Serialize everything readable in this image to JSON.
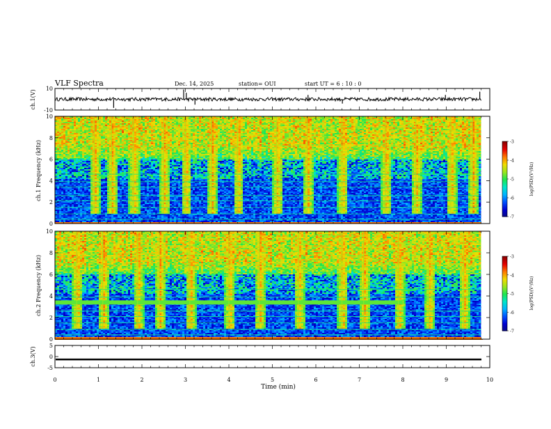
{
  "header": {
    "title": "VLF Spectra",
    "date": "Dec. 14, 2025",
    "station": "station= OUI",
    "start": "start  UT  =   6  : 10 : 0"
  },
  "colors": {
    "spec_scale": [
      "#0a0a82",
      "#0000d2",
      "#0050ff",
      "#00b4ff",
      "#00e6c8",
      "#1ee650",
      "#9be61e",
      "#f0dc00",
      "#ff7800",
      "#e60000",
      "#8c0000"
    ],
    "trace": "#000000"
  },
  "colorbars": [
    {
      "label": "log(PSD)(V²/Hz)",
      "ticks": [
        "-3",
        "-4",
        "-5",
        "-6",
        "-7"
      ]
    },
    {
      "label": "log(PSD)(V²/Hz)",
      "ticks": [
        "-3",
        "-4",
        "-5",
        "-6",
        "-7"
      ]
    }
  ],
  "chart_data": [
    {
      "type": "line",
      "name": "ch1-waveform",
      "ylabel": "ch.1(V)",
      "ylim": [
        -10,
        10
      ],
      "ytick_labels": [
        "10",
        "-10"
      ],
      "xlim": [
        0,
        10
      ],
      "baseline": 0,
      "spikes": [
        {
          "t": 1.35,
          "v": -8
        },
        {
          "t": 2.96,
          "v": 9
        },
        {
          "t": 3.02,
          "v": 6
        },
        {
          "t": 3.22,
          "v": -5
        },
        {
          "t": 5.82,
          "v": 4
        },
        {
          "t": 6.61,
          "v": -4
        },
        {
          "t": 8.98,
          "v": 4
        },
        {
          "t": 9.77,
          "v": 7
        }
      ]
    },
    {
      "type": "heatmap",
      "name": "ch1-spectrogram",
      "ylabel": "ch.1  Frequency  (kHz)",
      "ylim": [
        0,
        10
      ],
      "ytick_labels": [
        "0",
        "2",
        "4",
        "6",
        "8",
        "10"
      ],
      "xlim": [
        0,
        10
      ],
      "data_end_min": 9.8,
      "z_range": [
        -7,
        -3
      ],
      "background_logpsd": -6.7,
      "hiss_kHz": [
        6.0,
        10.0
      ],
      "hiss_logpsd": -4.3,
      "band_lines_kHz": [
        0.4,
        0.9,
        1.5,
        2.1,
        2.6,
        3.4,
        3.9,
        4.6
      ],
      "band_logpsd": -5.2,
      "burst_times_min": [
        0.9,
        1.3,
        1.8,
        2.5,
        3.0,
        3.6,
        4.2,
        5.1,
        5.8,
        6.6,
        7.6,
        8.3,
        9.1,
        9.6
      ]
    },
    {
      "type": "heatmap",
      "name": "ch2-spectrogram",
      "ylabel": "ch.2  Frequency  (kHz)",
      "ylim": [
        0,
        10
      ],
      "ytick_labels": [
        "0",
        "2",
        "4",
        "6",
        "8",
        "10"
      ],
      "xlim": [
        0,
        10
      ],
      "data_end_min": 9.8,
      "z_range": [
        -7,
        -3
      ],
      "background_logpsd": -6.7,
      "hiss_kHz": [
        6.0,
        10.0
      ],
      "hiss_logpsd": -4.3,
      "band_lines_kHz": [
        0.4,
        0.9,
        1.5,
        2.1,
        2.6,
        3.9,
        4.6
      ],
      "band_logpsd": -5.2,
      "tone_kHz": 3.4,
      "tone_end_min": 8.0,
      "tone_logpsd": -4.8,
      "burst_times_min": [
        0.5,
        1.1,
        1.9,
        2.4,
        3.1,
        4.0,
        4.7,
        5.6,
        6.6,
        7.1,
        7.9,
        8.6,
        9.4
      ]
    },
    {
      "type": "line",
      "name": "ch3-waveform",
      "ylabel": "ch.3(V)",
      "ylim": [
        -5,
        5
      ],
      "ytick_labels": [
        "5",
        "0",
        "-5"
      ],
      "xlim": [
        0,
        10
      ],
      "baseline": -1.3,
      "spikes": []
    }
  ],
  "x_axis": {
    "label": "Time  (min)",
    "ticks": [
      "0",
      "1",
      "2",
      "3",
      "4",
      "5",
      "6",
      "7",
      "8",
      "9",
      "10"
    ],
    "lim": [
      0,
      10
    ]
  }
}
